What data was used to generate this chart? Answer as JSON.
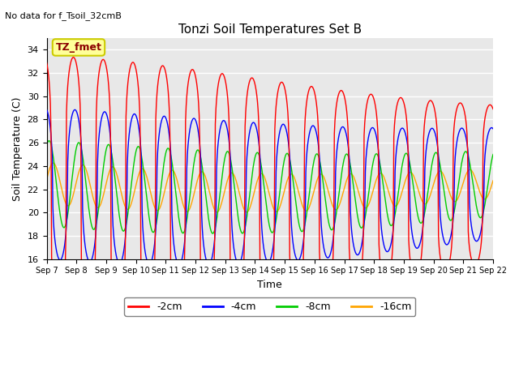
{
  "title": "Tonzi Soil Temperatures Set B",
  "subtitle": "No data for f_Tsoil_32cmB",
  "xlabel": "Time",
  "ylabel": "Soil Temperature (C)",
  "ylim": [
    16,
    35
  ],
  "yticks": [
    16,
    18,
    20,
    22,
    24,
    26,
    28,
    30,
    32,
    34
  ],
  "total_days": 15,
  "xtick_labels": [
    "Sep 7",
    "Sep 8",
    "Sep 9",
    "Sep 10",
    "Sep 11",
    "Sep 12",
    "Sep 13",
    "Sep 14",
    "Sep 15",
    "Sep 16",
    "Sep 17",
    "Sep 18",
    "Sep 19",
    "Sep 20",
    "Sep 21",
    "Sep 22"
  ],
  "colors": {
    "2cm": "#FF0000",
    "4cm": "#0000FF",
    "8cm": "#00CC00",
    "16cm": "#FFA500"
  },
  "legend_labels": [
    "-2cm",
    "-4cm",
    "-8cm",
    "-16cm"
  ],
  "annotation_box_label": "TZ_fmet",
  "annotation_box_color": "#FFFF99",
  "annotation_box_edge": "#CCCC00",
  "plot_bg_color": "#E8E8E8",
  "grid_color": "#FFFFFF",
  "figsize": [
    6.4,
    4.8
  ],
  "dpi": 100
}
